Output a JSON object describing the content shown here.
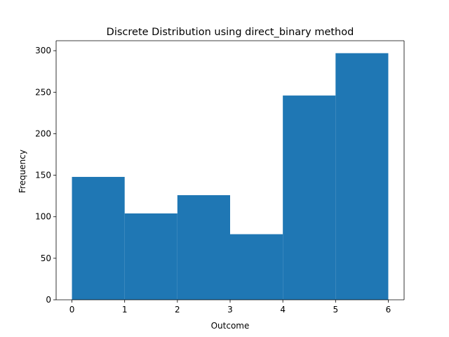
{
  "chart_data": {
    "type": "bar",
    "title": "Discrete Distribution using direct_binary method",
    "xlabel": "Outcome",
    "ylabel": "Frequency",
    "bins": [
      {
        "start": 0,
        "end": 1,
        "value": 148
      },
      {
        "start": 1,
        "end": 2,
        "value": 104
      },
      {
        "start": 2,
        "end": 3,
        "value": 126
      },
      {
        "start": 3,
        "end": 4,
        "value": 79
      },
      {
        "start": 4,
        "end": 5,
        "value": 246
      },
      {
        "start": 5,
        "end": 6,
        "value": 297
      }
    ],
    "xlim": [
      -0.3,
      6.3
    ],
    "ylim": [
      0,
      312
    ],
    "xticks": [
      0,
      1,
      2,
      3,
      4,
      5,
      6
    ],
    "yticks": [
      0,
      50,
      100,
      150,
      200,
      250,
      300
    ],
    "bar_color": "#1f77b4",
    "grid": false,
    "legend": "none"
  }
}
